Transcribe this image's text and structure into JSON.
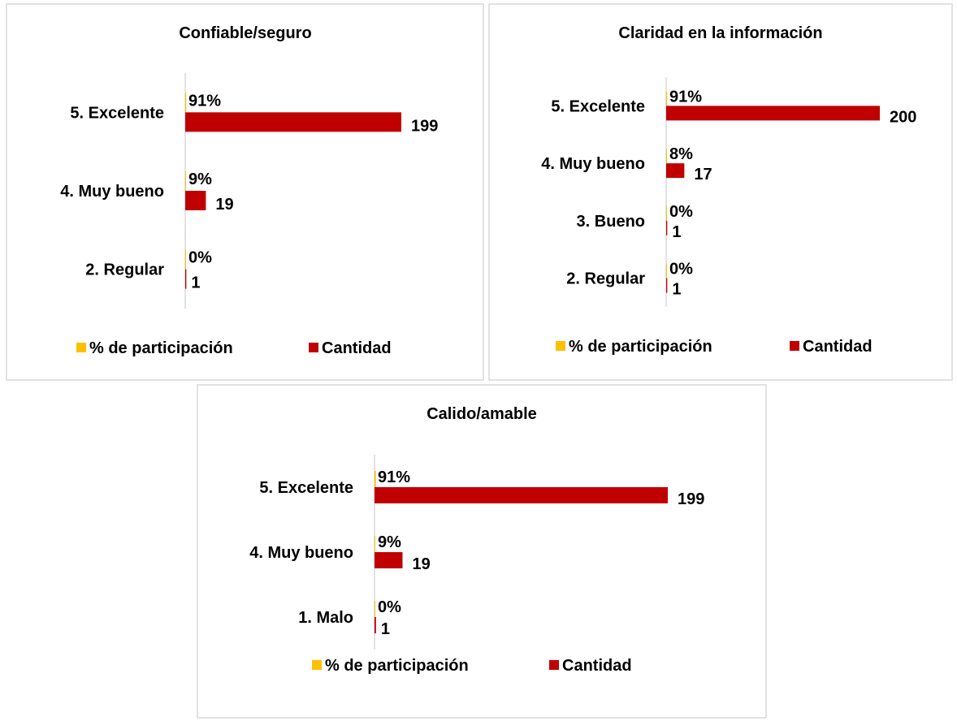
{
  "chart_data": [
    {
      "type": "bar",
      "orientation": "horizontal",
      "title": "Confiable/seguro",
      "categories": [
        "5. Excelente",
        "4. Muy bueno",
        "2.  Regular"
      ],
      "series": [
        {
          "name": "% de participación",
          "color": "#ffc000",
          "values": [
            0.91,
            0.09,
            0
          ],
          "value_labels": [
            "91%",
            "9%",
            "0%"
          ]
        },
        {
          "name": "Cantidad",
          "color": "#c00000",
          "values": [
            199,
            19,
            1
          ]
        }
      ],
      "legend": "bottom"
    },
    {
      "type": "bar",
      "orientation": "horizontal",
      "title": "Claridad en la información",
      "categories": [
        "5. Excelente",
        "4. Muy bueno",
        "3.  Bueno",
        "2.  Regular"
      ],
      "series": [
        {
          "name": "% de participación",
          "color": "#ffc000",
          "values": [
            0.91,
            0.08,
            0,
            0
          ],
          "value_labels": [
            "91%",
            "8%",
            "0%",
            "0%"
          ]
        },
        {
          "name": "Cantidad",
          "color": "#c00000",
          "values": [
            200,
            17,
            1,
            1
          ]
        }
      ],
      "legend": "bottom"
    },
    {
      "type": "bar",
      "orientation": "horizontal",
      "title": "Calido/amable",
      "categories": [
        "5. Excelente",
        "4. Muy bueno",
        "1.  Malo"
      ],
      "series": [
        {
          "name": "% de participación",
          "color": "#ffc000",
          "values": [
            0.91,
            0.09,
            0
          ],
          "value_labels": [
            "91%",
            "9%",
            "0%"
          ]
        },
        {
          "name": "Cantidad",
          "color": "#c00000",
          "values": [
            199,
            19,
            1
          ]
        }
      ],
      "legend": "bottom"
    }
  ]
}
